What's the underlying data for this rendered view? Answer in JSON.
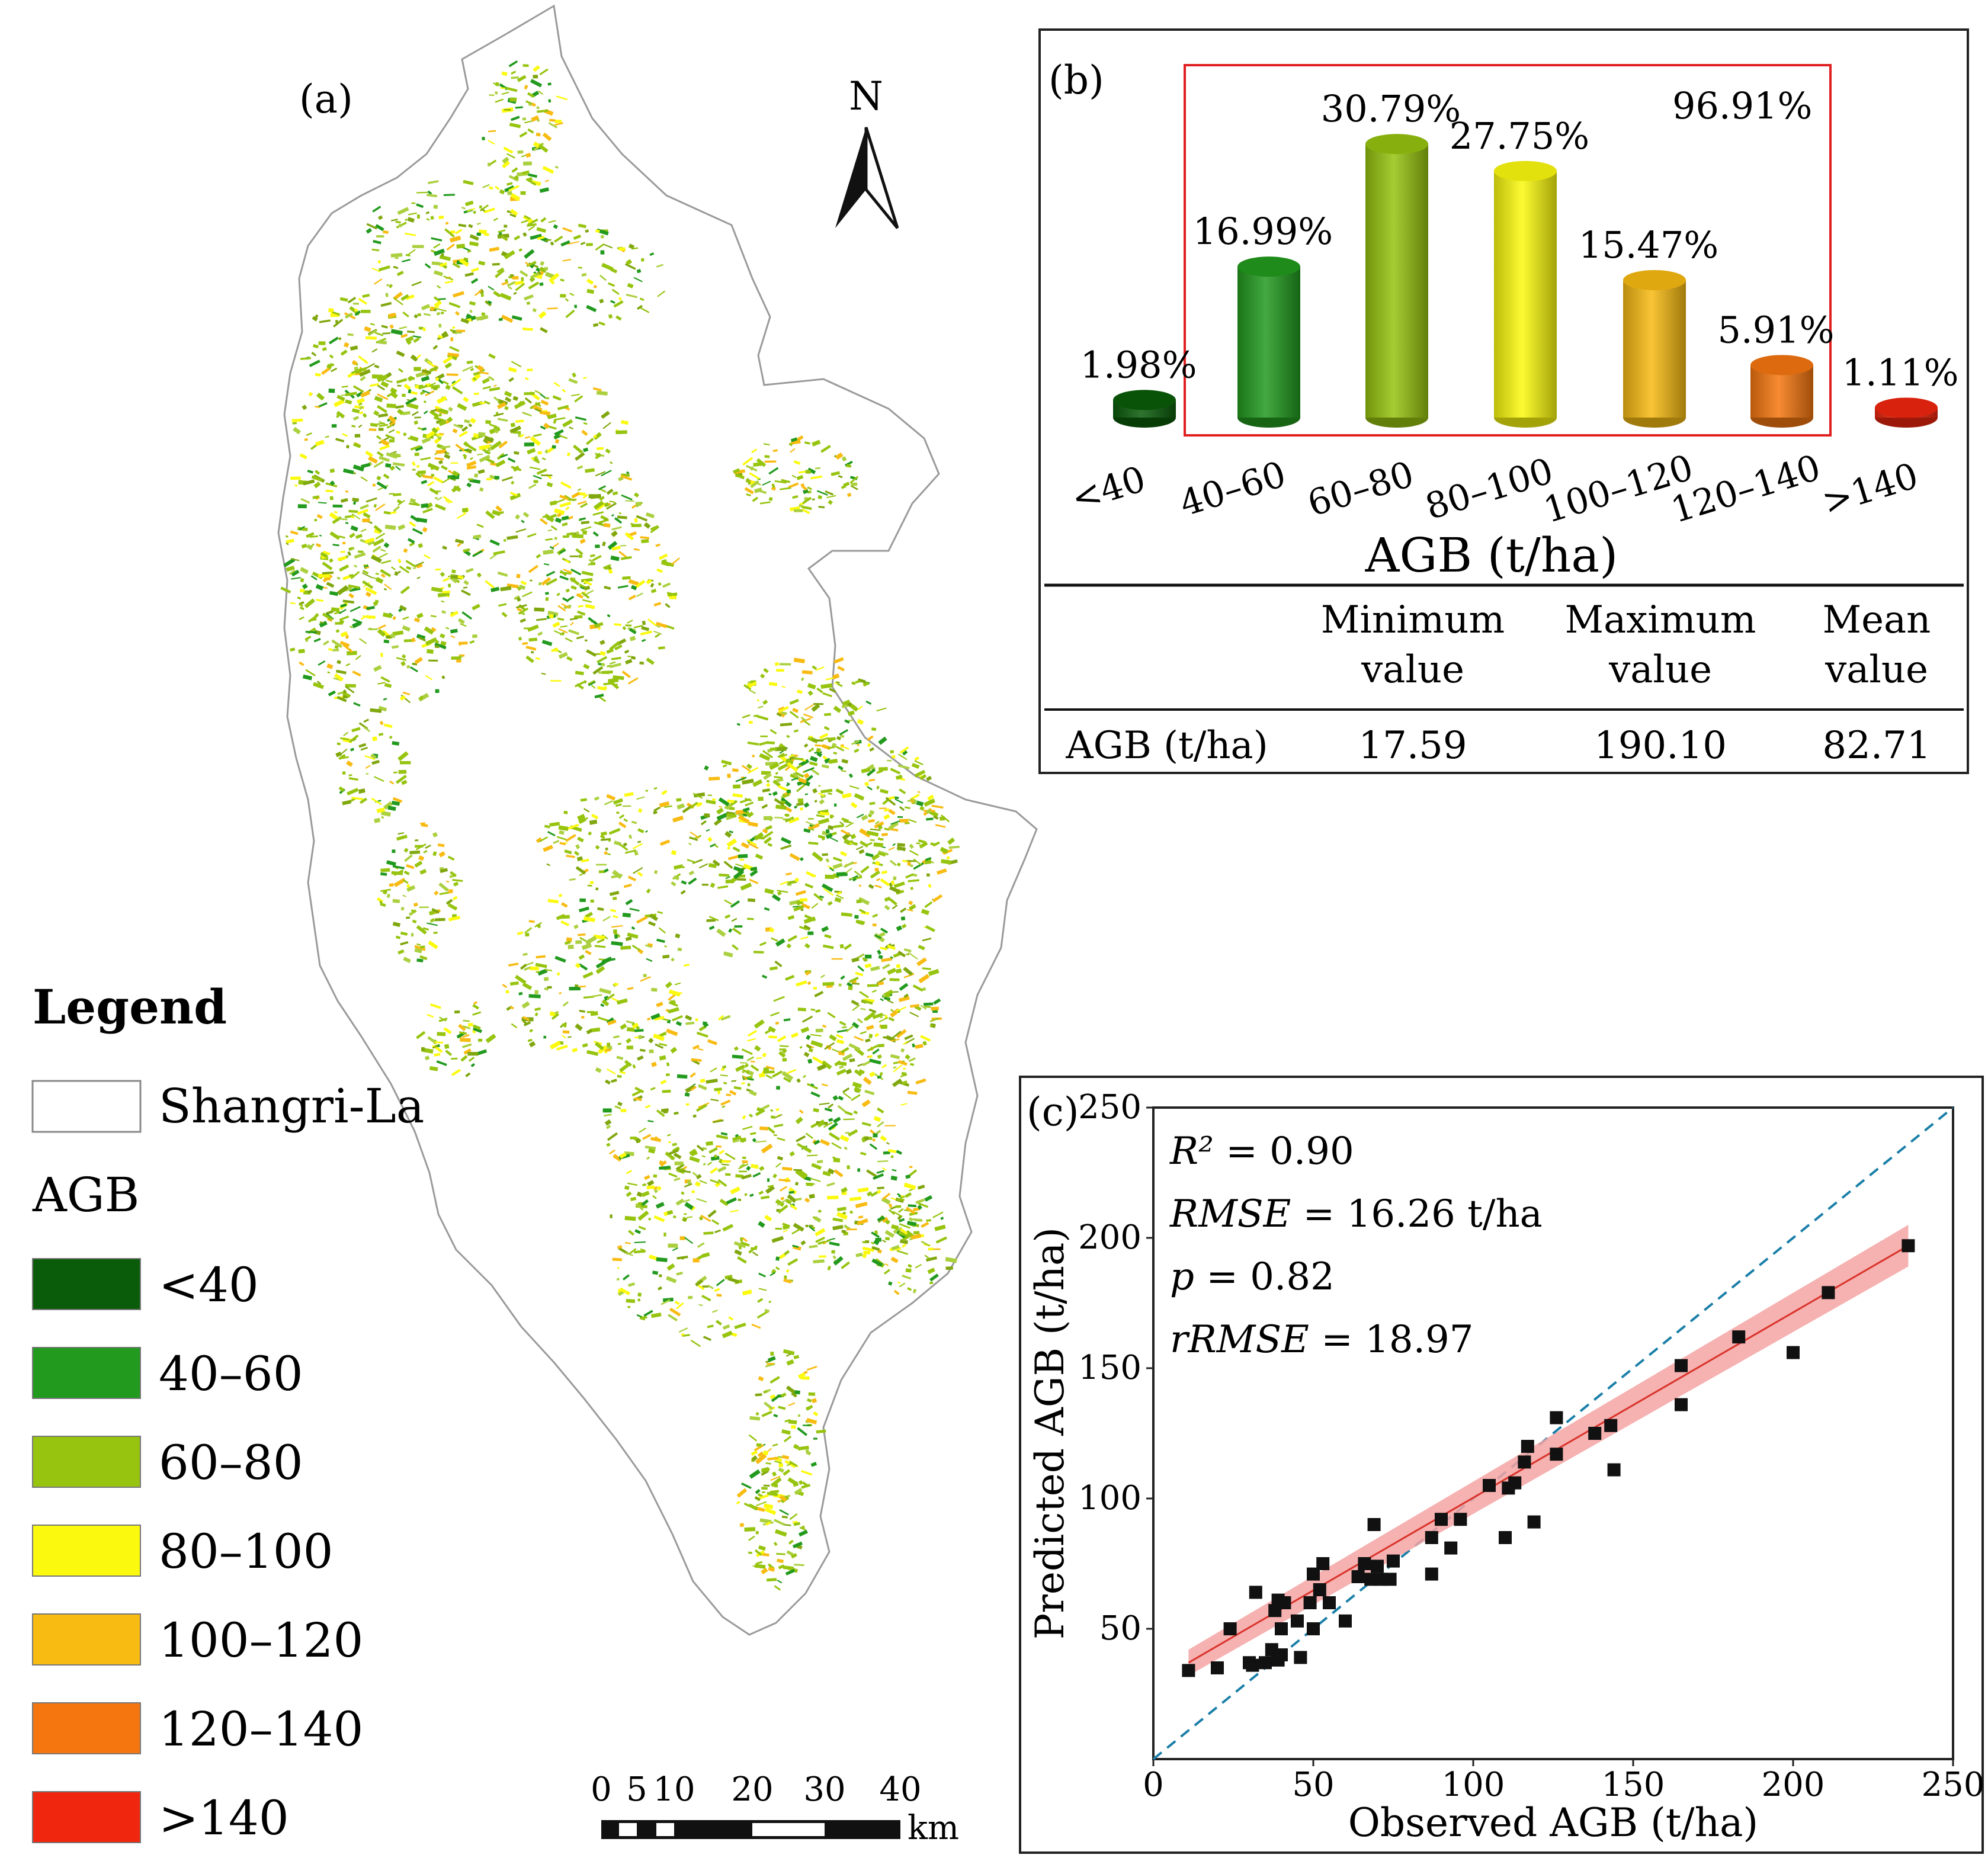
{
  "panel_a": {
    "label": "(a)",
    "north_label": "N",
    "legend": {
      "title": "Legend",
      "boundary_label": "Shangri-La",
      "agb_label": "AGB",
      "classes": [
        {
          "label": "<40",
          "color": "#0a5c0a"
        },
        {
          "label": "40–60",
          "color": "#229a1e"
        },
        {
          "label": "60–80",
          "color": "#96c40f"
        },
        {
          "label": "80–100",
          "color": "#fbfa0e"
        },
        {
          "label": "100–120",
          "color": "#f8bb12"
        },
        {
          "label": "120–140",
          "color": "#f5760f"
        },
        {
          "label": ">140",
          "color": "#f0260e"
        }
      ]
    },
    "scale_bar": {
      "ticks": [
        "0",
        "5",
        "10",
        "20",
        "30",
        "40"
      ],
      "unit": "km"
    }
  },
  "chart_data": [
    {
      "type": "bar",
      "panel_label": "(b)",
      "title": "",
      "xlabel": "AGB (t/ha)",
      "ylabel": "",
      "categories": [
        "<40",
        "40–60",
        "60–80",
        "80–100",
        "100–120",
        "120–140",
        ">140"
      ],
      "values": [
        1.98,
        16.99,
        30.79,
        27.75,
        15.47,
        5.91,
        1.11
      ],
      "value_labels": [
        "1.98%",
        "16.99%",
        "30.79%",
        "27.75%",
        "15.47%",
        "5.91%",
        "1.11%"
      ],
      "colors": [
        "#0a5c0a",
        "#229a1e",
        "#96c40f",
        "#fbfa0e",
        "#f8bb12",
        "#f5760f",
        "#f0260e"
      ],
      "highlight": {
        "label": "96.91%",
        "from": "40–60",
        "to": "120–140",
        "color": "#e02020"
      },
      "table": {
        "header_line1": [
          "",
          "Minimum",
          "Maximum",
          "Mean"
        ],
        "header_line2": [
          "",
          "value",
          "value",
          "value"
        ],
        "row_label": "AGB (t/ha)",
        "row_values": [
          "17.59",
          "190.10",
          "82.71"
        ]
      }
    },
    {
      "type": "scatter",
      "panel_label": "(c)",
      "title": "",
      "xlabel": "Observed AGB (t/ha)",
      "ylabel": "Predicted AGB (t/ha)",
      "xlim": [
        0,
        250
      ],
      "ylim": [
        0,
        250
      ],
      "xticks": [
        0,
        50,
        100,
        150,
        200,
        250
      ],
      "yticks": [
        50,
        100,
        150,
        200,
        250
      ],
      "stats": [
        {
          "name": "R²",
          "value": "= 0.90"
        },
        {
          "name": "RMSE",
          "value": "= 16.26 t/ha"
        },
        {
          "name": "p",
          "value": "= 0.82"
        },
        {
          "name": "rRMSE",
          "value": "= 18.97"
        }
      ],
      "identity_line": {
        "from": [
          0,
          0
        ],
        "to": [
          250,
          250
        ],
        "color": "#1a7fa8",
        "style": "dashed"
      },
      "fit_line": {
        "from": [
          11,
          37
        ],
        "to": [
          236,
          197
        ],
        "color": "#d9342b",
        "band": "#f5a3a3"
      },
      "points": [
        [
          11,
          34
        ],
        [
          20,
          35
        ],
        [
          24,
          50
        ],
        [
          30,
          37
        ],
        [
          31,
          36
        ],
        [
          32,
          64
        ],
        [
          35,
          37
        ],
        [
          37,
          42
        ],
        [
          38,
          57
        ],
        [
          39,
          38
        ],
        [
          39,
          61
        ],
        [
          40,
          50
        ],
        [
          40,
          40
        ],
        [
          41,
          60
        ],
        [
          45,
          53
        ],
        [
          46,
          39
        ],
        [
          49,
          60
        ],
        [
          50,
          50
        ],
        [
          50,
          71
        ],
        [
          52,
          65
        ],
        [
          53,
          75
        ],
        [
          55,
          60
        ],
        [
          60,
          53
        ],
        [
          64,
          70
        ],
        [
          66,
          75
        ],
        [
          68,
          69
        ],
        [
          69,
          90
        ],
        [
          70,
          74
        ],
        [
          71,
          69
        ],
        [
          74,
          69
        ],
        [
          75,
          76
        ],
        [
          87,
          85
        ],
        [
          87,
          71
        ],
        [
          90,
          92
        ],
        [
          93,
          81
        ],
        [
          96,
          92
        ],
        [
          105,
          105
        ],
        [
          110,
          85
        ],
        [
          111,
          104
        ],
        [
          113,
          106
        ],
        [
          116,
          114
        ],
        [
          117,
          120
        ],
        [
          119,
          91
        ],
        [
          126,
          131
        ],
        [
          126,
          117
        ],
        [
          138,
          125
        ],
        [
          143,
          128
        ],
        [
          144,
          111
        ],
        [
          165,
          151
        ],
        [
          165,
          136
        ],
        [
          183,
          162
        ],
        [
          200,
          156
        ],
        [
          211,
          179
        ],
        [
          236,
          197
        ]
      ]
    }
  ]
}
